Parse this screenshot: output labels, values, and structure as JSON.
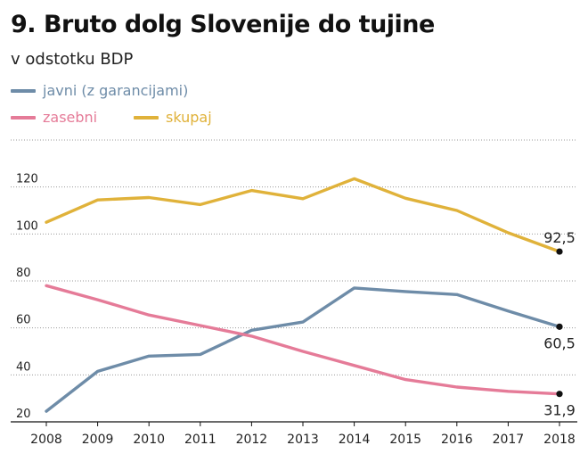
{
  "chart_data": {
    "type": "line",
    "title": "9. Bruto dolg Slovenije do tujine",
    "subtitle": "v odstotku BDP",
    "xlabel": "",
    "ylabel": "",
    "x": [
      "2008",
      "2009",
      "2010",
      "2011",
      "2012",
      "2013",
      "2014",
      "2015",
      "2016",
      "2017",
      "2018"
    ],
    "ylim": [
      20,
      140
    ],
    "yticks": [
      20,
      40,
      60,
      80,
      100,
      120
    ],
    "grid": true,
    "legend_position": "top-left",
    "series": [
      {
        "name": "javni (z garancijami)",
        "color": "#6e8ca8",
        "values": [
          24.5,
          41.5,
          48,
          48.7,
          59,
          62.5,
          77,
          75.5,
          74.2,
          67.2,
          60.5
        ],
        "end_label": "60,5"
      },
      {
        "name": "zasebni",
        "color": "#e57b98",
        "values": [
          78,
          72,
          65.5,
          61,
          56.5,
          50,
          44,
          38,
          34.8,
          33,
          31.9
        ],
        "end_label": "31,9"
      },
      {
        "name": "skupaj",
        "color": "#e0b23a",
        "values": [
          105,
          114.5,
          115.5,
          112.5,
          118.5,
          115,
          123.5,
          115.2,
          110,
          100.5,
          92.5
        ],
        "end_label": "92,5"
      }
    ]
  }
}
